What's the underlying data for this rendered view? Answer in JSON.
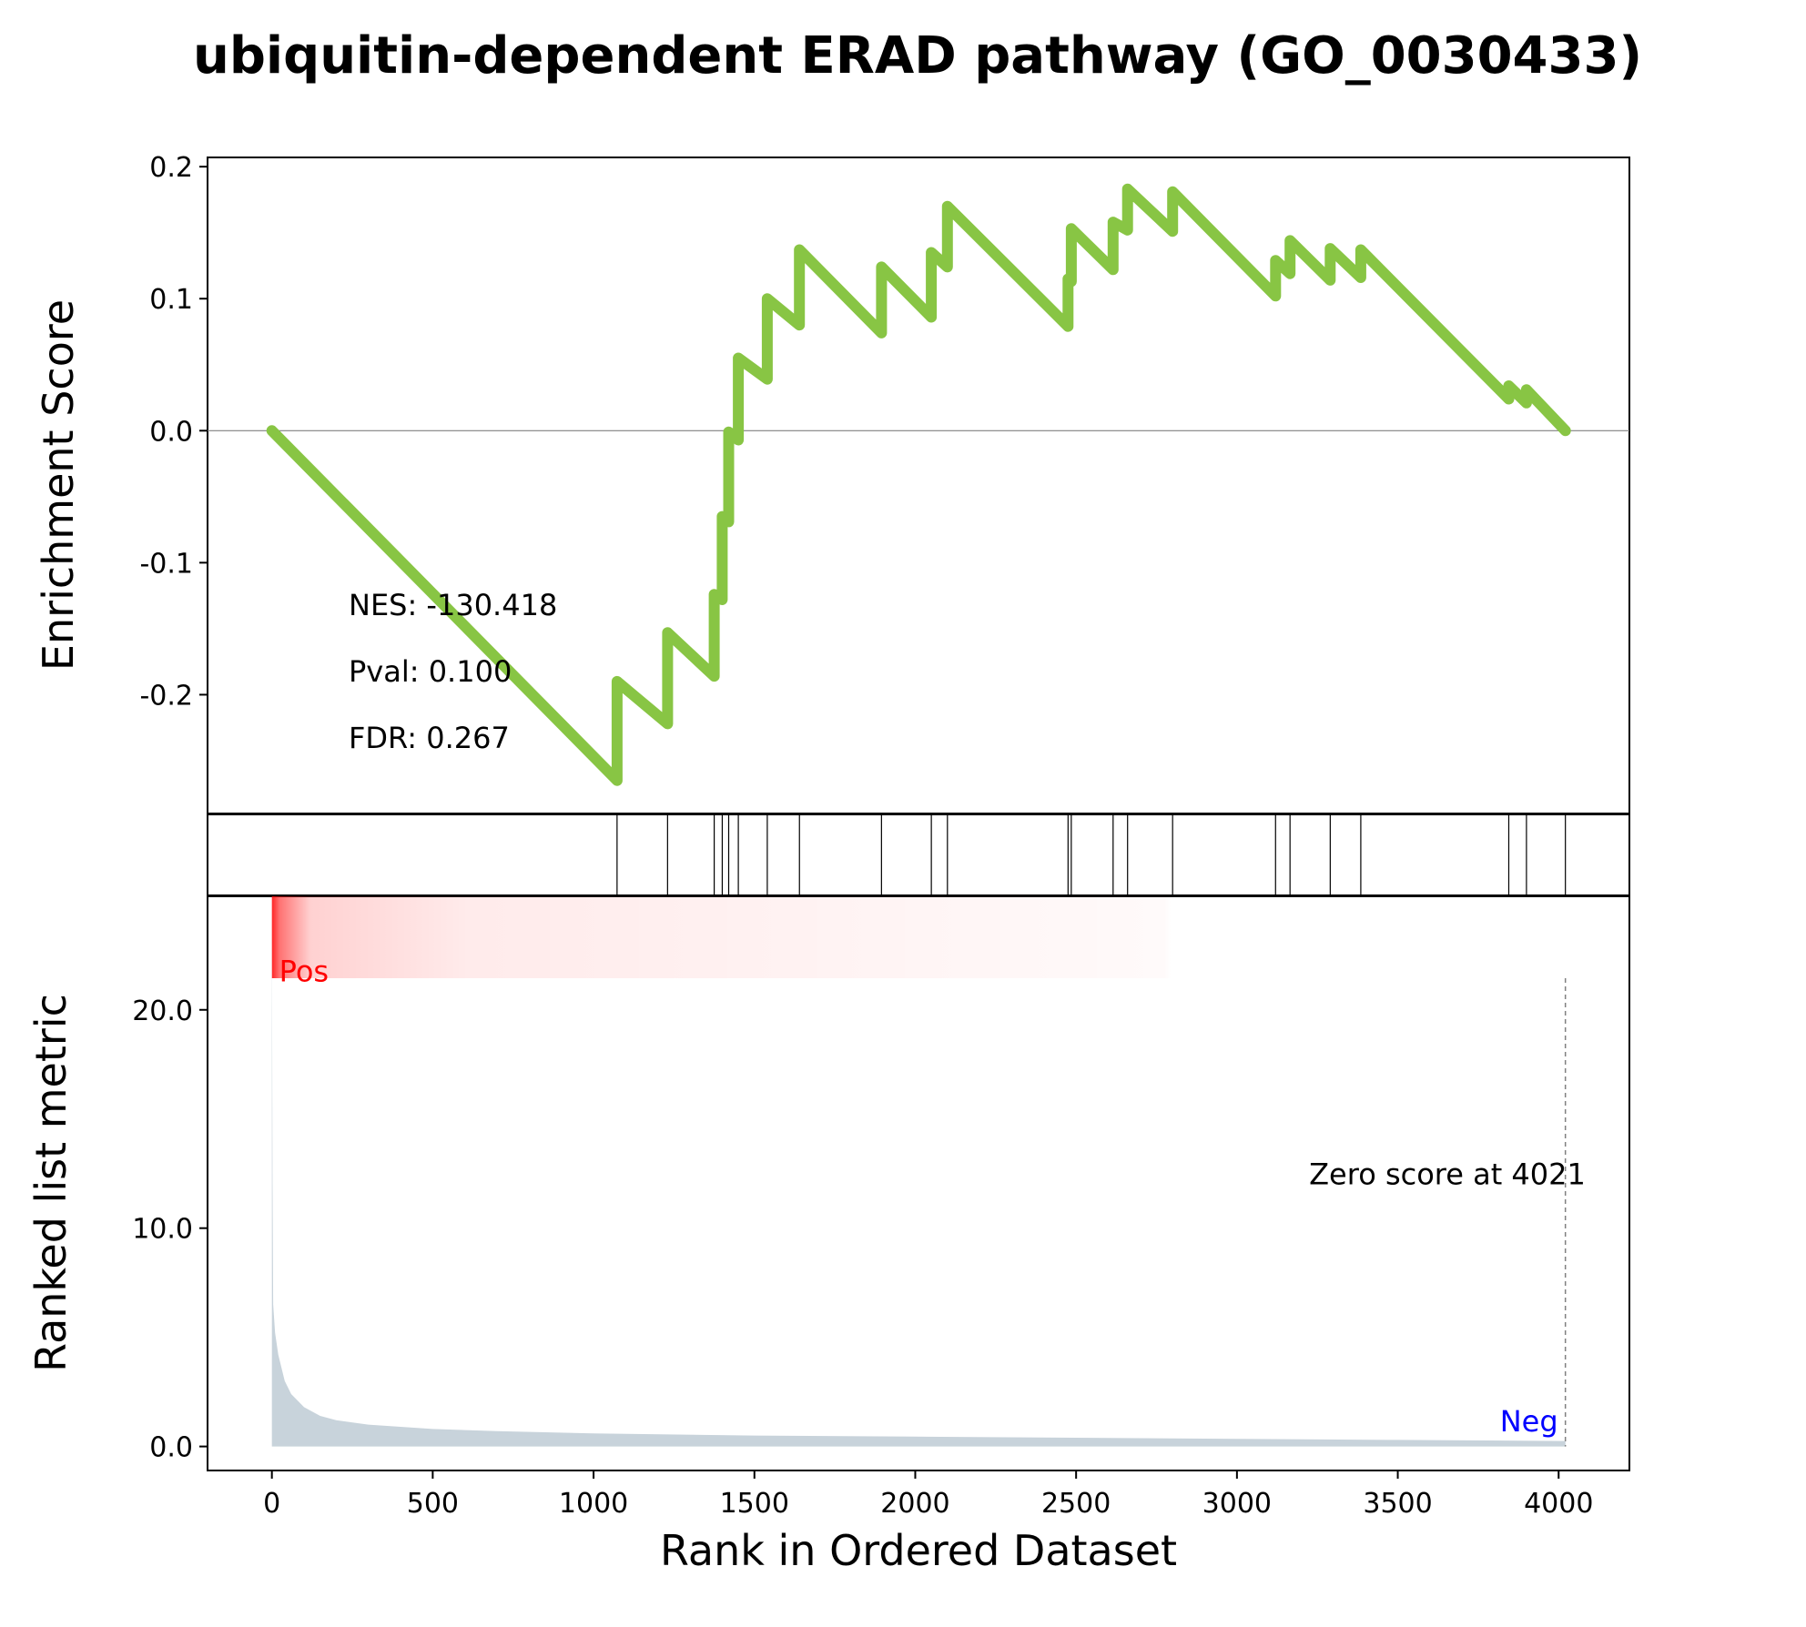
{
  "chart_data": {
    "type": "line",
    "title": "ubiquitin-dependent ERAD pathway (GO_0030433)",
    "xlabel": "Rank in Ordered Dataset",
    "xlim": [
      -200,
      4220
    ],
    "x_ticks": [
      0,
      500,
      1000,
      1500,
      2000,
      2500,
      3000,
      3500,
      4000
    ],
    "x_tick_labels": [
      "0",
      "500",
      "1000",
      "1500",
      "2000",
      "2500",
      "3000",
      "3500",
      "4000"
    ],
    "colors": {
      "es_line": "#88c544",
      "metric_fill": "#c8d3db",
      "heat": "#ff0000",
      "pos_label": "#ff0000",
      "neg_label": "#0000ff"
    },
    "es_panel": {
      "ylabel": "Enrichment Score",
      "ylim": [
        -0.29,
        0.207
      ],
      "y_ticks": [
        0.2,
        0.1,
        0.0,
        -0.1,
        -0.2
      ],
      "y_tick_labels": [
        "0.2",
        "0.1",
        "0.0",
        "-0.1",
        "-0.2"
      ],
      "zero_line": true,
      "hit_ranks": [
        1073,
        1230,
        1375,
        1400,
        1420,
        1450,
        1540,
        1640,
        1895,
        2050,
        2100,
        2475,
        2485,
        2615,
        2660,
        2800,
        3120,
        3165,
        3290,
        3385,
        3845,
        3900,
        4021
      ],
      "es_points": [
        [
          0,
          0.0
        ],
        [
          1073,
          -0.265
        ],
        [
          1073,
          -0.19
        ],
        [
          1230,
          -0.222
        ],
        [
          1230,
          -0.153
        ],
        [
          1375,
          -0.186
        ],
        [
          1375,
          -0.124
        ],
        [
          1400,
          -0.128
        ],
        [
          1400,
          -0.065
        ],
        [
          1420,
          -0.069
        ],
        [
          1420,
          -0.001
        ],
        [
          1450,
          -0.007
        ],
        [
          1450,
          0.055
        ],
        [
          1540,
          0.039
        ],
        [
          1540,
          0.1
        ],
        [
          1640,
          0.08
        ],
        [
          1640,
          0.137
        ],
        [
          1895,
          0.074
        ],
        [
          1895,
          0.124
        ],
        [
          2050,
          0.086
        ],
        [
          2050,
          0.135
        ],
        [
          2100,
          0.124
        ],
        [
          2100,
          0.17
        ],
        [
          2475,
          0.079
        ],
        [
          2475,
          0.115
        ],
        [
          2485,
          0.113
        ],
        [
          2485,
          0.153
        ],
        [
          2615,
          0.122
        ],
        [
          2615,
          0.158
        ],
        [
          2660,
          0.152
        ],
        [
          2660,
          0.183
        ],
        [
          2800,
          0.151
        ],
        [
          2800,
          0.181
        ],
        [
          3120,
          0.102
        ],
        [
          3120,
          0.129
        ],
        [
          3165,
          0.119
        ],
        [
          3165,
          0.144
        ],
        [
          3290,
          0.114
        ],
        [
          3290,
          0.138
        ],
        [
          3385,
          0.116
        ],
        [
          3385,
          0.137
        ],
        [
          3845,
          0.024
        ],
        [
          3845,
          0.034
        ],
        [
          3900,
          0.021
        ],
        [
          3900,
          0.031
        ],
        [
          4021,
          0.0
        ]
      ],
      "stats": {
        "nes": "NES: -130.418",
        "pval": "Pval: 0.100",
        "fdr": "FDR: 0.267"
      }
    },
    "metric_panel": {
      "ylabel": "Ranked list metric",
      "ylim": [
        -1.1,
        25.2
      ],
      "y_ticks": [
        20.0,
        10.0,
        0.0
      ],
      "y_tick_labels": [
        "20.0",
        "10.0",
        "0.0"
      ],
      "metric_points": [
        [
          0,
          24.0
        ],
        [
          2,
          12.0
        ],
        [
          4,
          6.5
        ],
        [
          10,
          5.2
        ],
        [
          20,
          4.2
        ],
        [
          40,
          3.0
        ],
        [
          60,
          2.4
        ],
        [
          100,
          1.8
        ],
        [
          150,
          1.4
        ],
        [
          200,
          1.2
        ],
        [
          300,
          1.0
        ],
        [
          500,
          0.8
        ],
        [
          700,
          0.7
        ],
        [
          1000,
          0.6
        ],
        [
          1500,
          0.5
        ],
        [
          2000,
          0.45
        ],
        [
          2500,
          0.4
        ],
        [
          3000,
          0.35
        ],
        [
          3500,
          0.3
        ],
        [
          4021,
          0.25
        ]
      ],
      "zero_score_rank": 4021,
      "zero_score_label": "Zero score at 4021",
      "pos_label": "Pos",
      "neg_label": "Neg"
    }
  }
}
